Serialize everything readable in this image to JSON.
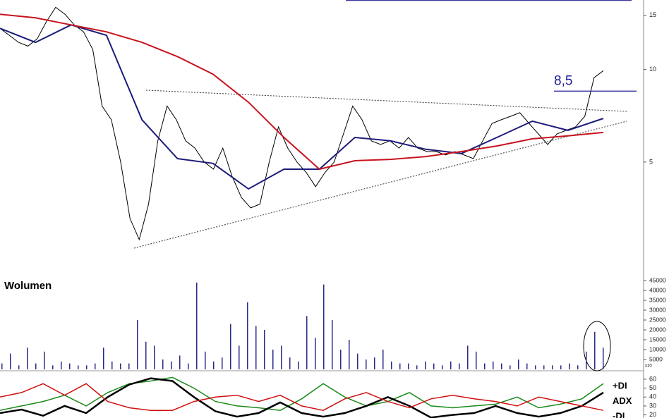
{
  "chart_data": [
    {
      "type": "line",
      "log_scale": true,
      "ylim": [
        2.15,
        16.8
      ],
      "yticks": [
        5,
        10,
        15
      ],
      "series": [
        {
          "color": "#000000",
          "values": [
            13.59,
            12.9,
            12.24,
            11.9,
            12.56,
            14.3,
            15.9,
            15.1,
            13.95,
            13.24,
            11.6,
            7.6,
            6.86,
            5.0,
            3.28,
            2.8,
            3.65,
            5.86,
            7.6,
            6.86,
            5.86,
            5.55,
            5.0,
            4.74,
            5.55,
            4.5,
            3.84,
            3.55,
            3.65,
            5.0,
            6.5,
            5.55,
            5.0,
            4.62,
            4.16,
            4.62,
            5.0,
            6.17,
            7.6,
            6.86,
            5.86,
            5.7,
            5.86,
            5.55,
            6.01,
            5.55,
            5.41,
            5.41,
            5.27,
            5.41,
            5.27,
            5.13,
            5.86,
            6.67,
            6.86,
            7.04,
            7.23,
            6.67,
            6.17,
            5.7,
            6.17,
            6.34,
            6.5,
            7.04,
            9.4,
            9.9
          ]
        },
        {
          "color": "#1c1c7a",
          "values": [
            13.59,
            12.24,
            13.95,
            12.9,
            6.86,
            5.13,
            4.95,
            4.09,
            4.74,
            4.74,
            6.01,
            5.86,
            5.5,
            5.33,
            6.01,
            6.79,
            6.34,
            6.93
          ]
        },
        {
          "color": "#c8141e",
          "values": [
            15.1,
            14.7,
            13.95,
            13.24,
            12.24,
            11.0,
            9.65,
            7.82,
            6.01,
            4.74,
            5.05,
            5.1,
            5.21,
            5.41,
            5.64,
            5.95,
            6.08,
            6.24
          ]
        }
      ],
      "annotations": [
        {
          "label": "8,5",
          "value": 8.5
        }
      ]
    },
    {
      "type": "bar",
      "title": "Wolumen",
      "unit_label": "x10",
      "color": "#2a2a8a",
      "ylim": [
        0,
        45000
      ],
      "yticks": [
        5000,
        10000,
        15000,
        20000,
        25000,
        30000,
        35000,
        40000,
        45000
      ],
      "values": [
        3000,
        8000,
        2000,
        11000,
        3000,
        9000,
        2000,
        4000,
        3000,
        2000,
        2000,
        3000,
        11000,
        4000,
        3000,
        3000,
        25000,
        14000,
        12000,
        5000,
        4000,
        7000,
        3000,
        44000,
        9000,
        4000,
        6000,
        23000,
        12000,
        34000,
        22000,
        20000,
        10000,
        12000,
        6000,
        4000,
        27000,
        16000,
        43000,
        25000,
        10000,
        15000,
        8000,
        5000,
        6000,
        10000,
        4000,
        3000,
        3000,
        2000,
        4000,
        3000,
        2000,
        4000,
        3000,
        12000,
        9000,
        3000,
        4000,
        3000,
        2000,
        5000,
        3000,
        2000,
        2000,
        2000,
        2000,
        3000,
        2000,
        9000,
        19000,
        11000
      ]
    },
    {
      "type": "line",
      "ylim": [
        16.5,
        66.3
      ],
      "yticks": [
        20,
        30,
        40,
        50,
        60
      ],
      "series": [
        {
          "name": "+DI",
          "color": "#1a8a1a",
          "values": [
            25,
            30,
            35,
            42,
            30,
            45,
            55,
            58,
            62,
            50,
            35,
            30,
            28,
            25,
            38,
            55,
            40,
            30,
            35,
            45,
            30,
            28,
            30,
            32,
            40,
            28,
            32,
            38,
            55
          ]
        },
        {
          "name": "ADX",
          "color": "#000000",
          "values": [
            22,
            26,
            19,
            30,
            22,
            40,
            54,
            61,
            58,
            40,
            24,
            18,
            22,
            34,
            22,
            18,
            22,
            30,
            40,
            30,
            17,
            20,
            22,
            30,
            22,
            18,
            22,
            30,
            45
          ]
        },
        {
          "name": "-DI",
          "color": "#d01010",
          "values": [
            40,
            45,
            55,
            42,
            55,
            35,
            28,
            25,
            25,
            35,
            40,
            42,
            35,
            42,
            30,
            25,
            38,
            45,
            35,
            28,
            38,
            42,
            38,
            35,
            30,
            40,
            35,
            30,
            25
          ]
        }
      ]
    }
  ]
}
